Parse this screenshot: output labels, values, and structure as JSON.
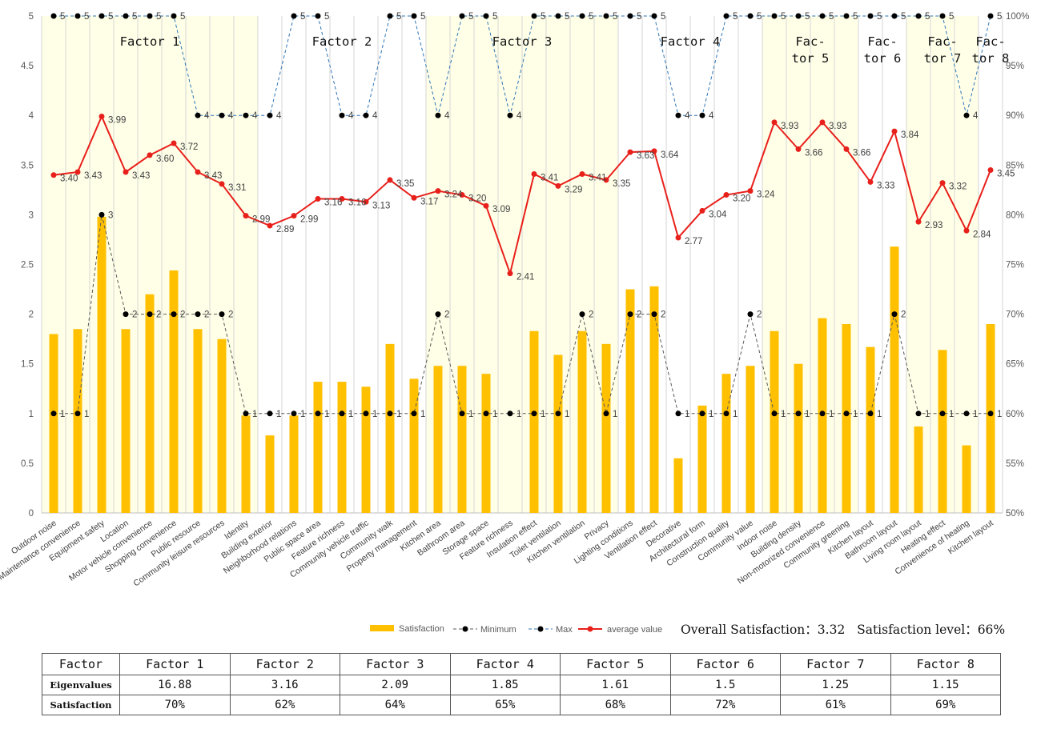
{
  "chart_data": {
    "type": "bar-line-combo",
    "categories": [
      "Outdoor noise",
      "Maintenance convenience",
      "Equipment safety",
      "Location",
      "Motor vehicle convenience",
      "Shopping convenience",
      "Public resource",
      "Community leisure resources",
      "Identity",
      "Building exterior",
      "Neighborhood relations",
      "Public space area",
      "Feature richness",
      "Community vehicle traffic",
      "Community walk",
      "Property management",
      "Kitchen area",
      "Bathroom area",
      "Storage space",
      "Feature richness",
      "Insulation effect",
      "Toilet ventilation",
      "Kitchen ventilation",
      "Privacy",
      "Lighting conditions",
      "Ventilation effect",
      "Decorative",
      "Architectural form",
      "Construction quality",
      "Community value",
      "Indoor noise",
      "Building density",
      "Non-motorized convenience",
      "Community greening",
      "Kitchen layout",
      "Bathroom layout",
      "Living room layout",
      "Heating effect",
      "Convenience of heating",
      "Kitchen layout"
    ],
    "series": [
      {
        "name": "Satisfaction",
        "type": "bar",
        "color": "#FFC000",
        "values": [
          1.8,
          1.85,
          2.98,
          1.85,
          2.2,
          2.44,
          1.85,
          1.75,
          0.98,
          0.78,
          0.98,
          1.32,
          1.32,
          1.27,
          1.7,
          1.35,
          1.48,
          1.48,
          1.4,
          0,
          1.83,
          1.59,
          1.83,
          1.7,
          2.25,
          2.28,
          0.55,
          1.08,
          1.4,
          1.48,
          1.83,
          1.5,
          1.96,
          1.9,
          1.67,
          2.68,
          0.87,
          1.64,
          0.68,
          1.9
        ]
      },
      {
        "name": "Minimum",
        "type": "line",
        "color": "#595959",
        "values": [
          1,
          1,
          3,
          2,
          2,
          2,
          2,
          2,
          1,
          1,
          1,
          1,
          1,
          1,
          1,
          1,
          2,
          1,
          1,
          1,
          1,
          1,
          2,
          1,
          2,
          2,
          1,
          1,
          1,
          2,
          1,
          1,
          1,
          1,
          1,
          2,
          1,
          1,
          1,
          1
        ],
        "labels": [
          "1",
          "1",
          "3",
          "2",
          "2",
          "2",
          "2",
          "2",
          "1",
          "1",
          "1",
          "1",
          "1",
          "1",
          "1",
          "1",
          "2",
          "1",
          "1",
          "1",
          "1",
          "1",
          "2",
          "1",
          "2",
          "2",
          "1",
          "1",
          "1",
          "2",
          "1",
          "1",
          "1",
          "1",
          "1",
          "2",
          "1",
          "1",
          "1",
          "1"
        ]
      },
      {
        "name": "Max",
        "type": "line",
        "color": "#2E75B6",
        "values": [
          5,
          5,
          5,
          5,
          5,
          5,
          4,
          4,
          4,
          4,
          5,
          5,
          4,
          4,
          5,
          5,
          4,
          5,
          5,
          4,
          5,
          5,
          5,
          5,
          5,
          5,
          4,
          4,
          5,
          5,
          5,
          5,
          5,
          5,
          5,
          5,
          5,
          5,
          4,
          5
        ],
        "labels": [
          "5",
          "5",
          "5",
          "5",
          "5",
          "5",
          "4",
          "4",
          "4",
          "4",
          "5",
          "5",
          "4",
          "4",
          "5",
          "5",
          "4",
          "5",
          "5",
          "4",
          "5",
          "5",
          "5",
          "5",
          "5",
          "5",
          "4",
          "4",
          "5",
          "5",
          "5",
          "5",
          "5",
          "5",
          "5",
          "5",
          "5",
          "5",
          "4",
          "5"
        ]
      },
      {
        "name": "average value",
        "type": "line",
        "color": "#E8201B",
        "values": [
          3.4,
          3.43,
          3.99,
          3.43,
          3.6,
          3.72,
          3.43,
          3.31,
          2.99,
          2.89,
          2.99,
          3.16,
          3.16,
          3.13,
          3.35,
          3.17,
          3.24,
          3.2,
          3.09,
          2.41,
          3.41,
          3.29,
          3.41,
          3.35,
          3.63,
          3.64,
          2.77,
          3.04,
          3.2,
          3.24,
          3.93,
          3.66,
          3.93,
          3.66,
          3.33,
          3.84,
          2.93,
          3.32,
          2.84,
          3.45
        ],
        "labels": [
          "3.40",
          "3.43",
          "3.99",
          "3.43",
          "3.60",
          "3.72",
          "3.43",
          "3.31",
          "2.99",
          "2.89",
          "2.99",
          "3.16",
          "3.16",
          "3.13",
          "3.35",
          "3.17",
          "3.24",
          "3.20",
          "3.09",
          "2.41",
          "3.41",
          "3.29",
          "3.41",
          "3.35",
          "3.63",
          "3.64",
          "2.77",
          "3.04",
          "3.20",
          "3.24",
          "3.93",
          "3.66",
          "3.93",
          "3.66",
          "3.33",
          "3.84",
          "2.93",
          "3.32",
          "2.84",
          "3.45"
        ]
      }
    ],
    "factor_bands": [
      {
        "label": [
          "Factor 1"
        ],
        "start": 0,
        "end": 8,
        "shaded": true
      },
      {
        "label": [
          "Factor 2"
        ],
        "start": 9,
        "end": 15,
        "shaded": false
      },
      {
        "label": [
          "Factor 3"
        ],
        "start": 16,
        "end": 23,
        "shaded": true
      },
      {
        "label": [
          "Factor 4"
        ],
        "start": 24,
        "end": 29,
        "shaded": false
      },
      {
        "label": [
          "Fac-",
          "tor 5"
        ],
        "start": 30,
        "end": 33,
        "shaded": true
      },
      {
        "label": [
          "Fac-",
          "tor 6"
        ],
        "start": 34,
        "end": 35,
        "shaded": false
      },
      {
        "label": [
          "Fac-",
          "tor 7"
        ],
        "start": 36,
        "end": 38,
        "shaded": true
      },
      {
        "label": [
          "Fac-",
          "tor 8"
        ],
        "start": 39,
        "end": 39,
        "shaded": false
      }
    ],
    "y_left": {
      "min": 0,
      "max": 5,
      "step": 0.5,
      "ticks": [
        "0",
        "0.5",
        "1",
        "1.5",
        "2",
        "2.5",
        "3",
        "3.5",
        "4",
        "4.5",
        "5"
      ]
    },
    "y_right": {
      "min": 50,
      "max": 100,
      "step": 5,
      "ticks": [
        "50%",
        "55%",
        "60%",
        "65%",
        "70%",
        "75%",
        "80%",
        "85%",
        "90%",
        "95%",
        "100%"
      ]
    },
    "band_color": "#FFFFE8",
    "grid": "vertical",
    "legend_placement": "bottom-right"
  },
  "summary": {
    "overall": "Overall Satisfaction：3.32",
    "level": "Satisfaction level：66%"
  },
  "factor_table": {
    "header": [
      "Factor",
      "Factor 1",
      "Factor 2",
      "Factor 3",
      "Factor 4",
      "Factor 5",
      "Factor 6",
      "Factor 7",
      "Factor 8"
    ],
    "eigen_label": "Eigenvalues",
    "eigenvalues": [
      "16.88",
      "3.16",
      "2.09",
      "1.85",
      "1.61",
      "1.5",
      "1.25",
      "1.15"
    ],
    "sat_label": "Satisfaction",
    "satisfaction": [
      "70%",
      "62%",
      "64%",
      "65%",
      "68%",
      "72%",
      "61%",
      "69%"
    ]
  }
}
